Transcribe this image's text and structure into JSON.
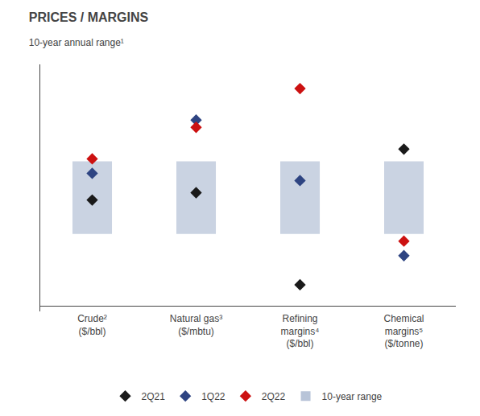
{
  "chart_data": {
    "type": "range",
    "title": "PRICES / MARGINS",
    "subtitle": "10-year annual range¹",
    "categories": [
      "Crude²\n($/bbl)",
      "Natural gas³\n($/mbtu)",
      "Refining\nmargins⁴\n($/bbl)",
      "Chemical\nmargins⁵\n($/tonne)"
    ],
    "series": [
      {
        "name": "2Q21",
        "type": "scatter",
        "marker": "diamond",
        "color": "#1a1a1a",
        "values": [
          44,
          47,
          9,
          65
        ]
      },
      {
        "name": "1Q22",
        "type": "scatter",
        "marker": "diamond",
        "color": "#2e4482",
        "values": [
          55,
          77,
          52,
          21
        ]
      },
      {
        "name": "2Q22",
        "type": "scatter",
        "marker": "diamond",
        "color": "#cc1111",
        "values": [
          61,
          74,
          90,
          27
        ]
      },
      {
        "name": "10-year range",
        "type": "bar",
        "color": "#b8c4d8",
        "low": [
          30,
          30,
          30,
          30
        ],
        "high": [
          60,
          60,
          60,
          60
        ]
      }
    ],
    "ylim": [
      -2,
      100
    ],
    "tick_labels": "x",
    "grid": false,
    "legend": "bottom"
  }
}
